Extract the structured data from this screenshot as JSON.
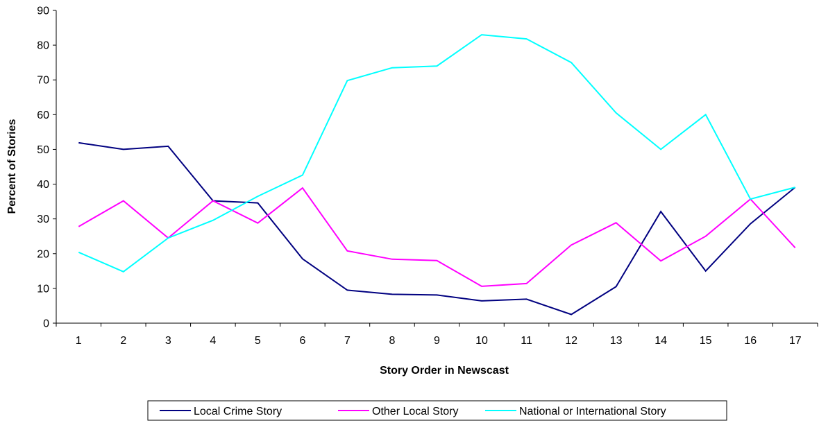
{
  "chart_data": {
    "type": "line",
    "title": "",
    "xlabel": "Story Order in Newscast",
    "ylabel": "Percent of Stories",
    "ylim": [
      0,
      90
    ],
    "yticks": [
      0,
      10,
      20,
      30,
      40,
      50,
      60,
      70,
      80,
      90
    ],
    "categories": [
      "1",
      "2",
      "3",
      "4",
      "5",
      "6",
      "7",
      "8",
      "9",
      "10",
      "11",
      "12",
      "13",
      "14",
      "15",
      "16",
      "17"
    ],
    "grid": false,
    "legend_position": "bottom",
    "series": [
      {
        "name": "Local Crime Story",
        "color": "#000080",
        "values": [
          51.9,
          50.0,
          50.9,
          35.2,
          34.6,
          18.5,
          9.5,
          8.3,
          8.1,
          6.4,
          6.9,
          2.5,
          10.5,
          32.1,
          15.0,
          28.6,
          39.1
        ]
      },
      {
        "name": "Other Local Story",
        "color": "#FF00FF",
        "values": [
          27.8,
          35.2,
          24.5,
          35.2,
          28.8,
          38.9,
          20.8,
          18.4,
          18.0,
          10.6,
          11.4,
          22.5,
          28.9,
          17.9,
          25.0,
          35.7,
          21.7
        ]
      },
      {
        "name": "National or International Story",
        "color": "#00FFFF",
        "values": [
          20.4,
          14.8,
          24.5,
          29.6,
          36.5,
          42.6,
          69.8,
          73.5,
          74.0,
          83.0,
          81.8,
          75.0,
          60.5,
          50.0,
          60.0,
          35.7,
          39.1
        ]
      }
    ]
  }
}
